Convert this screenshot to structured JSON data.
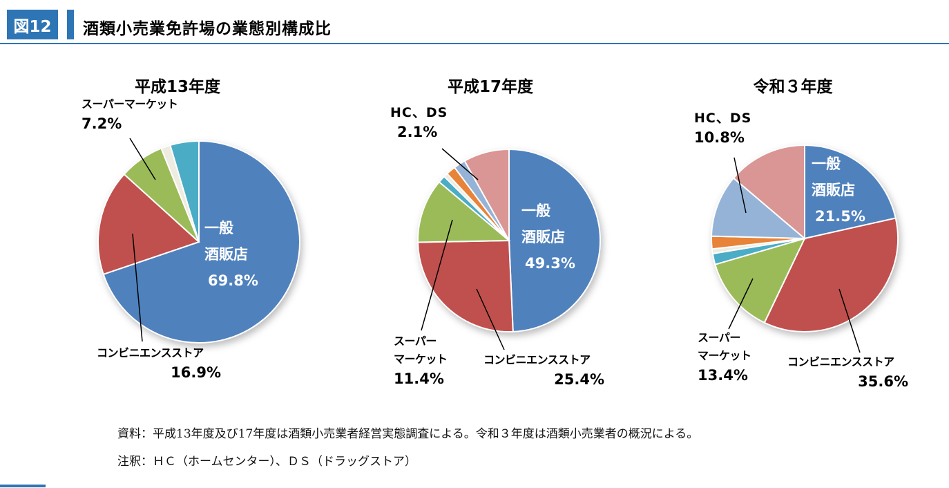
{
  "header": {
    "figure_label": "図12",
    "title": "酒類小売業免許場の業態別構成比",
    "accent_color": "#2E75B6"
  },
  "chart_data": [
    {
      "type": "pie",
      "title": "平成13年度",
      "unit": "%",
      "legend_position": "none",
      "slices": [
        {
          "label": "一般酒販店",
          "value": 69.8,
          "color": "#4F81BD"
        },
        {
          "label": "コンビニエンスストア",
          "value": 16.9,
          "color": "#C0504D"
        },
        {
          "label": "スーパーマーケット",
          "value": 7.2,
          "color": "#9BBB59"
        },
        {
          "label": "",
          "value": 1.5,
          "color": "#EEECE1"
        },
        {
          "label": "",
          "value": 4.6,
          "color": "#4BACC6"
        }
      ],
      "inside_label": {
        "line1": "一般",
        "line2": "酒販店",
        "line3": "69.8%"
      },
      "callouts": [
        {
          "line1": "スーパーマーケット",
          "line2": "7.2%"
        },
        {
          "line1": "コンビニエンスストア",
          "line2": "16.9%"
        }
      ]
    },
    {
      "type": "pie",
      "title": "平成17年度",
      "unit": "%",
      "legend_position": "none",
      "slices": [
        {
          "label": "一般酒販店",
          "value": 49.3,
          "color": "#4F81BD"
        },
        {
          "label": "コンビニエンスストア",
          "value": 25.4,
          "color": "#C0504D"
        },
        {
          "label": "スーパーマーケット",
          "value": 11.4,
          "color": "#9BBB59"
        },
        {
          "label": "",
          "value": 1.3,
          "color": "#4BACC6"
        },
        {
          "label": "",
          "value": 0.7,
          "color": "#EEECE1"
        },
        {
          "label": "",
          "value": 1.7,
          "color": "#E8833A"
        },
        {
          "label": "HC、DS",
          "value": 2.1,
          "color": "#95B3D7"
        },
        {
          "label": "",
          "value": 8.1,
          "color": "#D99694"
        }
      ],
      "inside_label": {
        "line1": "一般",
        "line2": "酒販店",
        "line3": "49.3%"
      },
      "callouts": [
        {
          "line1": "HC、DS",
          "line2": "2.1%"
        },
        {
          "line1": "スーパー",
          "line2": "マーケット",
          "line3": "11.4%"
        },
        {
          "line1": "コンビニエンスストア",
          "line2": "25.4%"
        }
      ]
    },
    {
      "type": "pie",
      "title": "令和３年度",
      "unit": "%",
      "legend_position": "none",
      "slices": [
        {
          "label": "一般酒販店",
          "value": 21.5,
          "color": "#4F81BD"
        },
        {
          "label": "コンビニエンスストア",
          "value": 35.6,
          "color": "#C0504D"
        },
        {
          "label": "スーパーマーケット",
          "value": 13.4,
          "color": "#9BBB59"
        },
        {
          "label": "",
          "value": 1.9,
          "color": "#4BACC6"
        },
        {
          "label": "",
          "value": 0.8,
          "color": "#EEECE1"
        },
        {
          "label": "",
          "value": 2.2,
          "color": "#E8833A"
        },
        {
          "label": "HC、DS",
          "value": 10.8,
          "color": "#95B3D7"
        },
        {
          "label": "",
          "value": 13.8,
          "color": "#D99694"
        }
      ],
      "inside_label": {
        "line1": "一般",
        "line2": "酒販店",
        "line3": "21.5%"
      },
      "callouts": [
        {
          "line1": "HC、DS",
          "line2": "10.8%"
        },
        {
          "line1": "スーパー",
          "line2": "マーケット",
          "line3": "13.4%"
        },
        {
          "line1": "コンビニエンスストア",
          "line2": "35.6%"
        }
      ]
    }
  ],
  "footer": {
    "source": "資料：平成13年度及び17年度は酒類小売業者経営実態調査による。令和３年度は酒類小売業者の概況による。",
    "note": "注釈：ＨＣ（ホームセンター）、ＤＳ（ドラッグストア）"
  }
}
